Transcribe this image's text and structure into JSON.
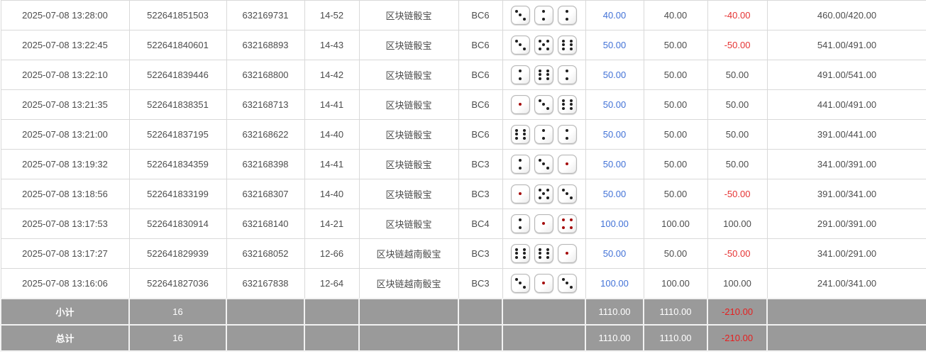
{
  "table": {
    "rows": [
      {
        "time": "2025-07-08 13:28:00",
        "bet_id": "522641851503",
        "round_id": "632169731",
        "period": "14-52",
        "game": "区块链骰宝",
        "table_code": "BC6",
        "dice": [
          3,
          2,
          2
        ],
        "bet_amount": "40.00",
        "valid_amount": "40.00",
        "win_loss": "-40.00",
        "balance": "460.00/420.00"
      },
      {
        "time": "2025-07-08 13:22:45",
        "bet_id": "522641840601",
        "round_id": "632168893",
        "period": "14-43",
        "game": "区块链骰宝",
        "table_code": "BC6",
        "dice": [
          3,
          5,
          6
        ],
        "bet_amount": "50.00",
        "valid_amount": "50.00",
        "win_loss": "-50.00",
        "balance": "541.00/491.00"
      },
      {
        "time": "2025-07-08 13:22:10",
        "bet_id": "522641839446",
        "round_id": "632168800",
        "period": "14-42",
        "game": "区块链骰宝",
        "table_code": "BC6",
        "dice": [
          2,
          6,
          2
        ],
        "bet_amount": "50.00",
        "valid_amount": "50.00",
        "win_loss": "50.00",
        "balance": "491.00/541.00"
      },
      {
        "time": "2025-07-08 13:21:35",
        "bet_id": "522641838351",
        "round_id": "632168713",
        "period": "14-41",
        "game": "区块链骰宝",
        "table_code": "BC6",
        "dice": [
          1,
          3,
          6
        ],
        "bet_amount": "50.00",
        "valid_amount": "50.00",
        "win_loss": "50.00",
        "balance": "441.00/491.00"
      },
      {
        "time": "2025-07-08 13:21:00",
        "bet_id": "522641837195",
        "round_id": "632168622",
        "period": "14-40",
        "game": "区块链骰宝",
        "table_code": "BC6",
        "dice": [
          6,
          2,
          2
        ],
        "bet_amount": "50.00",
        "valid_amount": "50.00",
        "win_loss": "50.00",
        "balance": "391.00/441.00"
      },
      {
        "time": "2025-07-08 13:19:32",
        "bet_id": "522641834359",
        "round_id": "632168398",
        "period": "14-41",
        "game": "区块链骰宝",
        "table_code": "BC3",
        "dice": [
          2,
          3,
          1
        ],
        "bet_amount": "50.00",
        "valid_amount": "50.00",
        "win_loss": "50.00",
        "balance": "341.00/391.00"
      },
      {
        "time": "2025-07-08 13:18:56",
        "bet_id": "522641833199",
        "round_id": "632168307",
        "period": "14-40",
        "game": "区块链骰宝",
        "table_code": "BC3",
        "dice": [
          1,
          5,
          3
        ],
        "bet_amount": "50.00",
        "valid_amount": "50.00",
        "win_loss": "-50.00",
        "balance": "391.00/341.00"
      },
      {
        "time": "2025-07-08 13:17:53",
        "bet_id": "522641830914",
        "round_id": "632168140",
        "period": "14-21",
        "game": "区块链骰宝",
        "table_code": "BC4",
        "dice": [
          2,
          1,
          4
        ],
        "bet_amount": "100.00",
        "valid_amount": "100.00",
        "win_loss": "100.00",
        "balance": "291.00/391.00"
      },
      {
        "time": "2025-07-08 13:17:27",
        "bet_id": "522641829939",
        "round_id": "632168052",
        "period": "12-66",
        "game": "区块链越南骰宝",
        "table_code": "BC3",
        "dice": [
          6,
          6,
          1
        ],
        "bet_amount": "50.00",
        "valid_amount": "50.00",
        "win_loss": "-50.00",
        "balance": "341.00/291.00"
      },
      {
        "time": "2025-07-08 13:16:06",
        "bet_id": "522641827036",
        "round_id": "632167838",
        "period": "12-64",
        "game": "区块链越南骰宝",
        "table_code": "BC3",
        "dice": [
          3,
          1,
          3
        ],
        "bet_amount": "100.00",
        "valid_amount": "100.00",
        "win_loss": "100.00",
        "balance": "241.00/341.00"
      }
    ],
    "summaries": [
      {
        "label": "小计",
        "count": "16",
        "bet_total": "1110.00",
        "valid_total": "1110.00",
        "win_loss_total": "-210.00"
      },
      {
        "label": "总计",
        "count": "16",
        "bet_total": "1110.00",
        "valid_total": "1110.00",
        "win_loss_total": "-210.00"
      }
    ]
  },
  "colors": {
    "accent_blue": "#4272d7",
    "negative_red": "#e53232",
    "summary_bg": "#9a9a9a",
    "summary_text": "#ffffff",
    "pip_black": "#1f1f1f",
    "pip_red": "#a50d0d",
    "border": "#d9d9d9"
  }
}
